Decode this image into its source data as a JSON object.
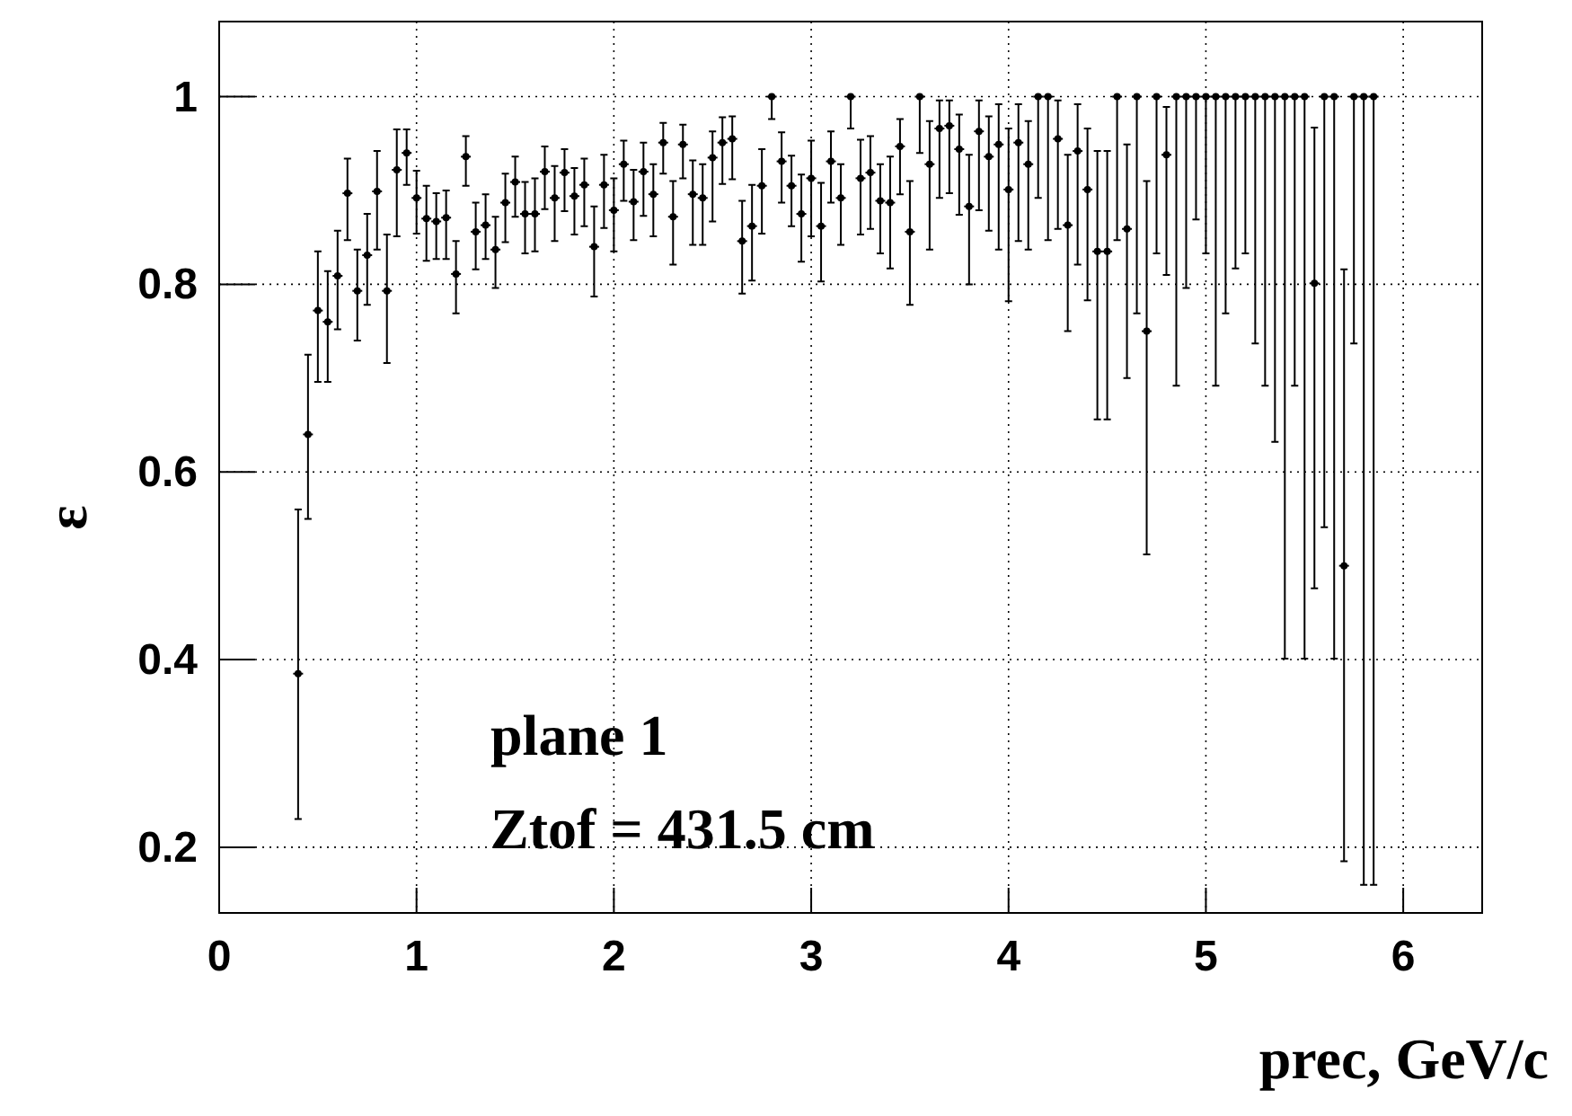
{
  "chart_data": {
    "type": "scatter",
    "xlabel": "prec, GeV/c",
    "ylabel": "ε",
    "annotations": [
      "plane 1",
      "Ztof = 431.5 cm"
    ],
    "xlim": [
      0,
      6.4
    ],
    "ylim": [
      0.13,
      1.08
    ],
    "xticks": [
      0,
      1,
      2,
      3,
      4,
      5,
      6
    ],
    "yticks": [
      0.2,
      0.4,
      0.6,
      0.8,
      1
    ],
    "grid": true,
    "series": [
      {
        "color": "#000000",
        "x": [
          0.4,
          0.45,
          0.5,
          0.55,
          0.6,
          0.65,
          0.7,
          0.75,
          0.8,
          0.85,
          0.9,
          0.95,
          1.0,
          1.05,
          1.1,
          1.15,
          1.2,
          1.25,
          1.3,
          1.35,
          1.4,
          1.45,
          1.5,
          1.55,
          1.6,
          1.65,
          1.7,
          1.75,
          1.8,
          1.85,
          1.9,
          1.95,
          2.0,
          2.05,
          2.1,
          2.15,
          2.2,
          2.25,
          2.3,
          2.35,
          2.4,
          2.45,
          2.5,
          2.55,
          2.6,
          2.65,
          2.7,
          2.75,
          2.8,
          2.85,
          2.9,
          2.95,
          3.0,
          3.05,
          3.1,
          3.15,
          3.2,
          3.25,
          3.3,
          3.35,
          3.4,
          3.45,
          3.5,
          3.55,
          3.6,
          3.65,
          3.7,
          3.75,
          3.8,
          3.85,
          3.9,
          3.95,
          4.0,
          4.05,
          4.1,
          4.15,
          4.2,
          4.25,
          4.3,
          4.35,
          4.4,
          4.45,
          4.5,
          4.55,
          4.6,
          4.65,
          4.7,
          4.75,
          4.8,
          4.85,
          4.9,
          4.95,
          5.0,
          5.05,
          5.1,
          5.15,
          5.2,
          5.25,
          5.3,
          5.35,
          5.4,
          5.45,
          5.5,
          5.55,
          5.6,
          5.65,
          5.7,
          5.75,
          5.8,
          5.85
        ],
        "values": [
          0.385,
          0.64,
          0.772,
          0.76,
          0.809,
          0.897,
          0.793,
          0.831,
          0.899,
          0.793,
          0.922,
          0.94,
          0.892,
          0.87,
          0.867,
          0.871,
          0.811,
          0.936,
          0.856,
          0.863,
          0.837,
          0.887,
          0.909,
          0.875,
          0.875,
          0.92,
          0.892,
          0.919,
          0.894,
          0.906,
          0.84,
          0.906,
          0.879,
          0.928,
          0.888,
          0.92,
          0.896,
          0.951,
          0.872,
          0.949,
          0.896,
          0.892,
          0.935,
          0.951,
          0.955,
          0.846,
          0.862,
          0.905,
          1.0,
          0.931,
          0.905,
          0.875,
          0.913,
          0.862,
          0.931,
          0.892,
          1.0,
          0.913,
          0.919,
          0.889,
          0.887,
          0.947,
          0.856,
          1.0,
          0.928,
          0.966,
          0.969,
          0.944,
          0.883,
          0.963,
          0.936,
          0.949,
          0.901,
          0.951,
          0.928,
          1.0,
          1.0,
          0.955,
          0.863,
          0.942,
          0.901,
          0.835,
          0.835,
          1.0,
          0.859,
          1.0,
          0.75,
          1.0,
          0.938,
          1.0,
          1.0,
          1.0,
          1.0,
          1.0,
          1.0,
          1.0,
          1.0,
          1.0,
          1.0,
          1.0,
          1.0,
          1.0,
          1.0,
          0.801,
          1.0,
          1.0,
          0.5,
          1.0,
          1.0,
          1.0
        ],
        "errors": [
          [
            0.23,
            0.56
          ],
          [
            0.55,
            0.725
          ],
          [
            0.696,
            0.835
          ],
          [
            0.696,
            0.814
          ],
          [
            0.752,
            0.857
          ],
          [
            0.847,
            0.934
          ],
          [
            0.74,
            0.837
          ],
          [
            0.778,
            0.875
          ],
          [
            0.837,
            0.942
          ],
          [
            0.716,
            0.853
          ],
          [
            0.851,
            0.965
          ],
          [
            0.906,
            0.965
          ],
          [
            0.854,
            0.921
          ],
          [
            0.825,
            0.905
          ],
          [
            0.827,
            0.897
          ],
          [
            0.827,
            0.9
          ],
          [
            0.769,
            0.846
          ],
          [
            0.905,
            0.958
          ],
          [
            0.816,
            0.887
          ],
          [
            0.827,
            0.896
          ],
          [
            0.796,
            0.872
          ],
          [
            0.845,
            0.918
          ],
          [
            0.872,
            0.936
          ],
          [
            0.833,
            0.909
          ],
          [
            0.835,
            0.913
          ],
          [
            0.88,
            0.947
          ],
          [
            0.846,
            0.926
          ],
          [
            0.878,
            0.944
          ],
          [
            0.853,
            0.924
          ],
          [
            0.862,
            0.934
          ],
          [
            0.787,
            0.883
          ],
          [
            0.86,
            0.938
          ],
          [
            0.835,
            0.913
          ],
          [
            0.889,
            0.953
          ],
          [
            0.847,
            0.922
          ],
          [
            0.873,
            0.951
          ],
          [
            0.851,
            0.928
          ],
          [
            0.918,
            0.972
          ],
          [
            0.821,
            0.91
          ],
          [
            0.913,
            0.97
          ],
          [
            0.842,
            0.932
          ],
          [
            0.842,
            0.928
          ],
          [
            0.867,
            0.963
          ],
          [
            0.907,
            0.978
          ],
          [
            0.912,
            0.979
          ],
          [
            0.79,
            0.889
          ],
          [
            0.804,
            0.906
          ],
          [
            0.854,
            0.944
          ],
          [
            0.976,
            1.0
          ],
          [
            0.887,
            0.962
          ],
          [
            0.862,
            0.937
          ],
          [
            0.824,
            0.917
          ],
          [
            0.851,
            0.953
          ],
          [
            0.803,
            0.908
          ],
          [
            0.887,
            0.963
          ],
          [
            0.842,
            0.928
          ],
          [
            0.966,
            1.0
          ],
          [
            0.853,
            0.954
          ],
          [
            0.859,
            0.958
          ],
          [
            0.833,
            0.928
          ],
          [
            0.817,
            0.936
          ],
          [
            0.896,
            0.976
          ],
          [
            0.778,
            0.91
          ],
          [
            0.94,
            1.0
          ],
          [
            0.837,
            0.974
          ],
          [
            0.892,
            0.996
          ],
          [
            0.897,
            0.996
          ],
          [
            0.874,
            0.981
          ],
          [
            0.8,
            0.938
          ],
          [
            0.879,
            0.996
          ],
          [
            0.857,
            0.979
          ],
          [
            0.837,
            0.992
          ],
          [
            0.782,
            0.966
          ],
          [
            0.846,
            0.992
          ],
          [
            0.837,
            0.974
          ],
          [
            0.892,
            1.0
          ],
          [
            0.847,
            1.0
          ],
          [
            0.859,
            0.996
          ],
          [
            0.75,
            0.938
          ],
          [
            0.821,
            0.992
          ],
          [
            0.783,
            0.966
          ],
          [
            0.656,
            0.942
          ],
          [
            0.656,
            0.942
          ],
          [
            0.847,
            1.0
          ],
          [
            0.7,
            0.949
          ],
          [
            0.769,
            1.0
          ],
          [
            0.512,
            0.91
          ],
          [
            0.833,
            1.0
          ],
          [
            0.81,
            0.989
          ],
          [
            0.692,
            1.0
          ],
          [
            0.796,
            1.0
          ],
          [
            0.869,
            1.0
          ],
          [
            0.833,
            1.0
          ],
          [
            0.692,
            1.0
          ],
          [
            0.769,
            1.0
          ],
          [
            0.817,
            1.0
          ],
          [
            0.833,
            1.0
          ],
          [
            0.737,
            1.0
          ],
          [
            0.692,
            1.0
          ],
          [
            0.632,
            1.0
          ],
          [
            0.401,
            1.0
          ],
          [
            0.692,
            1.0
          ],
          [
            0.401,
            1.0
          ],
          [
            0.476,
            0.967
          ],
          [
            0.541,
            1.0
          ],
          [
            0.401,
            1.0
          ],
          [
            0.185,
            0.816
          ],
          [
            0.737,
            1.0
          ],
          [
            0.16,
            1.0
          ],
          [
            0.16,
            1.0
          ]
        ],
        "xerrors": [
          0.025,
          0.025,
          0.025,
          0.025,
          0.025,
          0.025,
          0.025,
          0.025,
          0.025,
          0.025,
          0.025,
          0.025,
          0.025,
          0.025,
          0.025,
          0.025,
          0.025,
          0.025,
          0.025,
          0.025,
          0.025,
          0.025,
          0.025,
          0.025,
          0.025,
          0.025,
          0.025,
          0.025,
          0.025,
          0.025,
          0.025,
          0.025,
          0.025,
          0.025,
          0.025,
          0.025,
          0.025,
          0.025,
          0.025,
          0.025,
          0.025,
          0.025,
          0.025,
          0.025,
          0.025,
          0.025,
          0.025,
          0.025,
          0.025,
          0.025,
          0.025,
          0.025,
          0.025,
          0.025,
          0.025,
          0.025,
          0.025,
          0.025,
          0.025,
          0.025,
          0.025,
          0.025,
          0.025,
          0.025,
          0.025,
          0.025,
          0.025,
          0.025,
          0.025,
          0.025,
          0.025,
          0.025,
          0.025,
          0.025,
          0.025,
          0.025,
          0.025,
          0.025,
          0.025,
          0.025,
          0.025,
          0.025,
          0.025,
          0.025,
          0.025,
          0.025,
          0.025,
          0.025,
          0.025,
          0.025,
          0.025,
          0.025,
          0.025,
          0.025,
          0.025,
          0.025,
          0.025,
          0.025,
          0.025,
          0.025,
          0.025,
          0.025,
          0.025,
          0.025,
          0.025,
          0.025,
          0.025,
          0.025,
          0.025,
          0.025
        ]
      }
    ]
  }
}
